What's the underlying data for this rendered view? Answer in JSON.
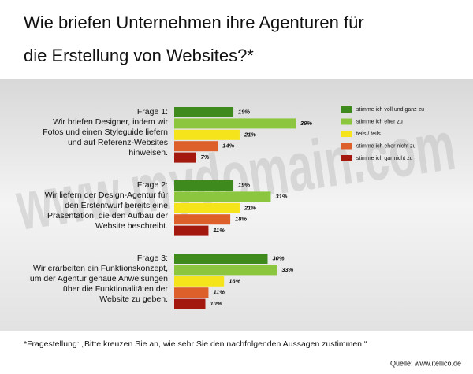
{
  "chart_data": {
    "type": "bar",
    "orientation": "horizontal",
    "title": [
      "Wie briefen Unternehmen ihre Agenturen für",
      "die Erstellung von Websites?*"
    ],
    "watermark": "www.mydomain.com",
    "categories": [
      [
        "Frage 1:",
        "Wir briefen Designer, indem wir",
        "Fotos und einen Styleguide liefern",
        "und auf Referenz-Websites",
        "hinweisen."
      ],
      [
        "Frage 2:",
        "Wir liefern der Design-Agentur für",
        "den Erstentwurf bereits eine",
        "Präsentation, die den Aufbau der",
        "Website beschreibt."
      ],
      [
        "Frage 3:",
        "Wir erarbeiten ein Funktionskonzept,",
        "um der Agentur genaue Anweisungen",
        "über die Funktionalitäten der",
        "Website zu geben."
      ]
    ],
    "series": [
      {
        "name": "stimme ich voll und ganz zu",
        "color": "#3f8a1c",
        "values": [
          19,
          19,
          30
        ],
        "value_labels": [
          "19%",
          "19%",
          "30%"
        ]
      },
      {
        "name": "stimme ich eher zu",
        "color": "#8cc63e",
        "values": [
          39,
          31,
          33
        ],
        "value_labels": [
          "39%",
          "31%",
          "33%"
        ]
      },
      {
        "name": "teils / teils",
        "color": "#f5e41c",
        "values": [
          21,
          21,
          16
        ],
        "value_labels": [
          "21%",
          "21%",
          "16%"
        ]
      },
      {
        "name": "stimme ich eher nicht zu",
        "color": "#dd5f2a",
        "values": [
          14,
          18,
          11
        ],
        "value_labels": [
          "14%",
          "18%",
          "11%"
        ]
      },
      {
        "name": "stimme ich gar nicht zu",
        "color": "#a3190e",
        "values": [
          7,
          11,
          10
        ],
        "value_labels": [
          "7%",
          "11%",
          "10%"
        ]
      }
    ],
    "legend": "top-right",
    "footnote": "*Fragestellung: „Bitte kreuzen Sie an, wie sehr Sie den nachfolgenden Aussagen zustimmen.“",
    "source": "Quelle: www.itellico.de"
  }
}
